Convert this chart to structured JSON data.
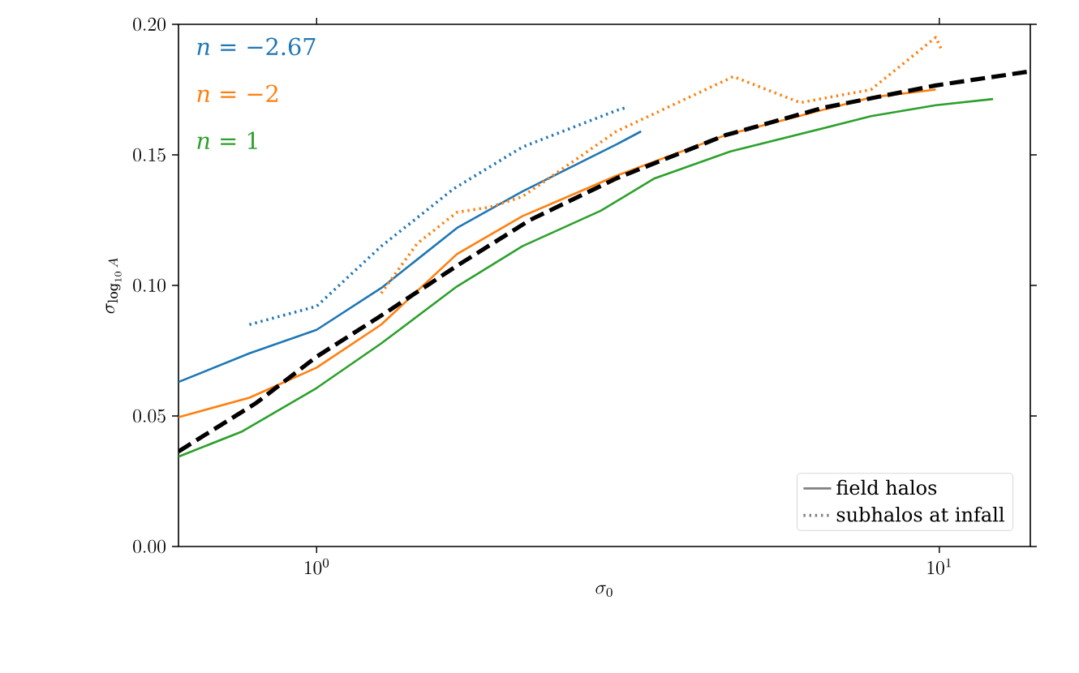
{
  "chart_data": {
    "type": "line",
    "xlabel": "\\sigma_0",
    "ylabel": "\\sigma_{\\log_{10} A}",
    "log": "x",
    "xlim": [
      0.6,
      14
    ],
    "ylim": [
      0,
      0.2
    ],
    "xticks": [
      {
        "value": 1,
        "label": "10^{0}"
      },
      {
        "value": 10,
        "label": "10^{1}"
      }
    ],
    "yticks": [
      {
        "value": 0,
        "label": "0.00"
      },
      {
        "value": 0.05,
        "label": "0.05"
      },
      {
        "value": 0.1,
        "label": "0.10"
      },
      {
        "value": 0.15,
        "label": "0.15"
      },
      {
        "value": 0.2,
        "label": "0.20"
      }
    ],
    "legend": "bottom right",
    "grid": false,
    "marker": "none",
    "series": [
      {
        "name": "*n* = −2.67",
        "color": "#1f77b4",
        "line_style": "solid",
        "x": [
          0.6,
          0.78,
          1.0,
          1.27,
          1.68,
          2.14,
          3.03,
          3.32
        ],
        "values": [
          0.063,
          0.074,
          0.083,
          0.099,
          0.122,
          0.136,
          0.154,
          0.159
        ]
      },
      {
        "color": "#1f77b4",
        "line_style": "dotted",
        "x": [
          0.78,
          1.0,
          1.27,
          1.66,
          2.14,
          3.03,
          3.13
        ],
        "values": [
          0.085,
          0.092,
          0.115,
          0.137,
          0.153,
          0.167,
          0.168
        ]
      },
      {
        "name": "*n* = −2",
        "color": "#ff7f0e",
        "line_style": "solid",
        "x": [
          0.6,
          0.78,
          1.0,
          1.27,
          1.68,
          2.14,
          3.03,
          4.53,
          5.98,
          7.77,
          9.87
        ],
        "values": [
          0.0495,
          0.057,
          0.0685,
          0.085,
          0.112,
          0.1265,
          0.142,
          0.1575,
          0.165,
          0.172,
          0.175
        ]
      },
      {
        "color": "#ff7f0e",
        "line_style": "dotted",
        "x": [
          1.27,
          1.45,
          1.68,
          1.9,
          2.14,
          3.03,
          4.67,
          5.98,
          7.77,
          9.87,
          10.1
        ],
        "values": [
          0.097,
          0.116,
          0.128,
          0.13,
          0.134,
          0.159,
          0.18,
          0.17,
          0.175,
          0.195,
          0.19
        ]
      },
      {
        "name": "*n* = 1",
        "color": "#2ca02c",
        "line_style": "solid",
        "x": [
          0.6,
          0.76,
          1.0,
          1.27,
          1.68,
          2.14,
          2.86,
          3.49,
          4.62,
          7.77,
          9.87,
          12.2
        ],
        "values": [
          0.0344,
          0.0441,
          0.0607,
          0.0778,
          0.0996,
          0.115,
          0.1286,
          0.141,
          0.1513,
          0.1648,
          0.169,
          0.1714
        ]
      },
      {
        "color": "#000000",
        "line_style": "dashed",
        "x": [
          0.6,
          0.8,
          1.0,
          1.3,
          1.68,
          2.2,
          3.03,
          4.53,
          6.5,
          9.87,
          14
        ],
        "values": [
          0.0364,
          0.055,
          0.0727,
          0.09,
          0.1075,
          0.125,
          0.141,
          0.1575,
          0.168,
          0.1766,
          0.182
        ]
      },
      {
        "name": "field halos",
        "color": "#808080",
        "line_style": "solid"
      },
      {
        "name": "subhalos at infall",
        "color": "#808080",
        "line_style": "dotted"
      }
    ]
  }
}
